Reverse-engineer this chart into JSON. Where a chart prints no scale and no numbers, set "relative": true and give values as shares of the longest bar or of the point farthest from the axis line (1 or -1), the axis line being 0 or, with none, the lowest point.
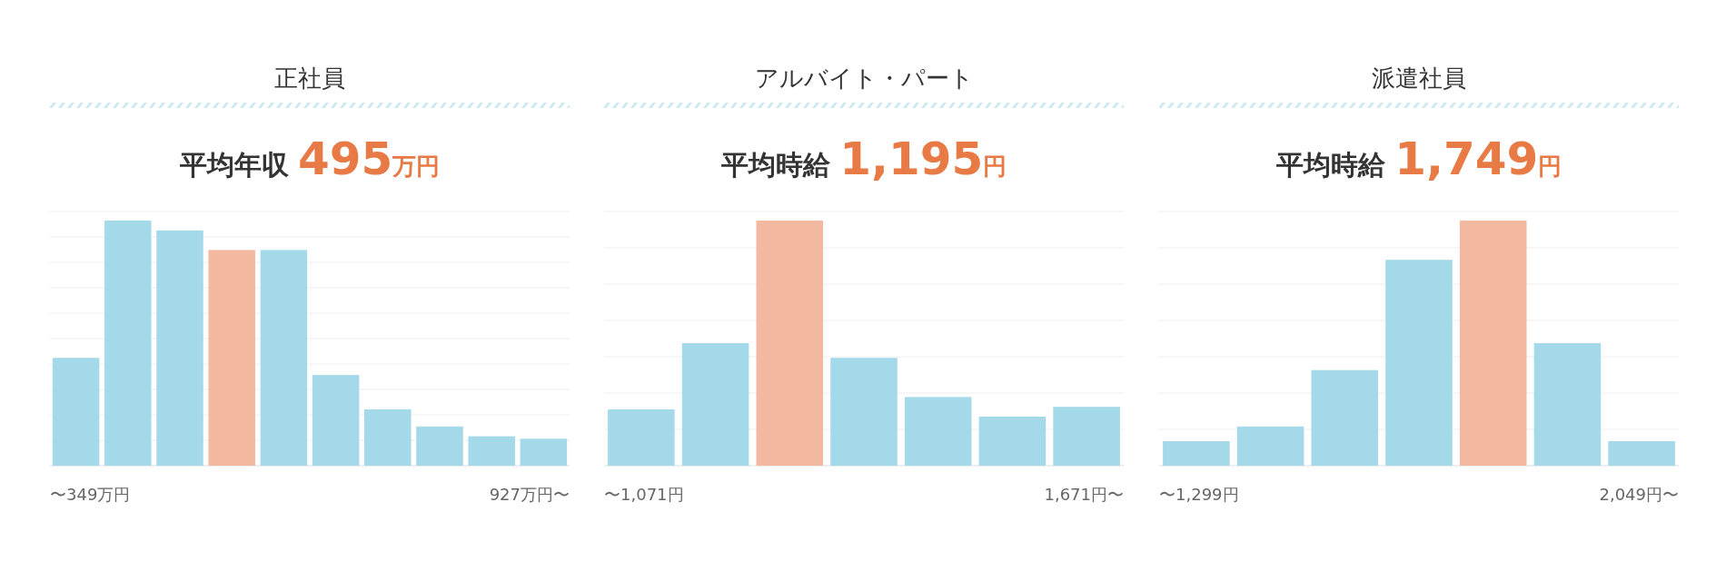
{
  "chart_data": [
    {
      "type": "bar",
      "title": "正社員",
      "subtitle": "平均年収 495万円",
      "relative": true,
      "grid": "y",
      "categories": [
        "〜349万円",
        null,
        null,
        null,
        null,
        null,
        null,
        null,
        null,
        "927万円〜"
      ],
      "values": [
        0.44,
        1,
        0.96,
        0.88,
        0.88,
        0.37,
        0.23,
        0.16,
        0.12,
        0.11
      ],
      "colors": [
        "#a3d9e8",
        "#a3d9e8",
        "#a3d9e8",
        "#f2b8a0",
        "#a3d9e8",
        "#a3d9e8",
        "#a3d9e8",
        "#a3d9e8",
        "#a3d9e8",
        "#a3d9e8"
      ]
    },
    {
      "type": "bar",
      "title": "アルバイト・パート",
      "subtitle": "平均時給 1,195円",
      "relative": true,
      "grid": "y",
      "categories": [
        "〜1,071円",
        null,
        null,
        null,
        null,
        null,
        "1,671円〜"
      ],
      "values": [
        0.23,
        0.5,
        1,
        0.44,
        0.28,
        0.2,
        0.24
      ],
      "colors": [
        "#a3d9e8",
        "#a3d9e8",
        "#f2b8a0",
        "#a3d9e8",
        "#a3d9e8",
        "#a3d9e8",
        "#a3d9e8"
      ]
    },
    {
      "type": "bar",
      "title": "派遣社員",
      "subtitle": "平均時給 1,749円",
      "relative": true,
      "grid": "y",
      "categories": [
        "〜1,299円",
        null,
        null,
        null,
        null,
        null,
        "2,049円〜"
      ],
      "values": [
        0.1,
        0.16,
        0.39,
        0.84,
        1,
        0.5,
        0.1
      ],
      "colors": [
        "#a3d9e8",
        "#a3d9e8",
        "#a3d9e8",
        "#a3d9e8",
        "#f2b8a0",
        "#a3d9e8",
        "#a3d9e8"
      ]
    }
  ]
}
